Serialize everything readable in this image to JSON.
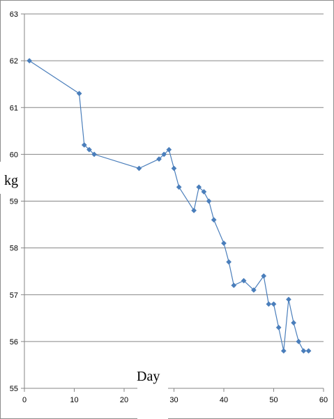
{
  "chart_data": {
    "type": "line",
    "xlabel": "Day",
    "ylabel": "kg",
    "xlim": [
      0,
      60
    ],
    "ylim": [
      55,
      63
    ],
    "x_ticks": [
      0,
      10,
      20,
      30,
      40,
      50,
      60
    ],
    "y_ticks": [
      55,
      56,
      57,
      58,
      59,
      60,
      61,
      62,
      63
    ],
    "grid": "horizontal",
    "legend": "none",
    "series": [
      {
        "color": "#4a7ebb",
        "points": [
          [
            1,
            62.0
          ],
          [
            11,
            61.3
          ],
          [
            12,
            60.2
          ],
          [
            13,
            60.1
          ],
          [
            14,
            60.0
          ],
          [
            23,
            59.7
          ],
          [
            27,
            59.9
          ],
          [
            28,
            60.0
          ],
          [
            29,
            60.1
          ],
          [
            30,
            59.7
          ],
          [
            31,
            59.3
          ],
          [
            34,
            58.8
          ],
          [
            35,
            59.3
          ],
          [
            36,
            59.2
          ],
          [
            37,
            59.0
          ],
          [
            38,
            58.6
          ],
          [
            40,
            58.1
          ],
          [
            41,
            57.7
          ],
          [
            42,
            57.2
          ],
          [
            44,
            57.3
          ],
          [
            46,
            57.1
          ],
          [
            48,
            57.4
          ],
          [
            49,
            56.8
          ],
          [
            50,
            56.8
          ],
          [
            51,
            56.3
          ],
          [
            52,
            55.8
          ],
          [
            53,
            56.9
          ],
          [
            54,
            56.4
          ],
          [
            55,
            56.0
          ],
          [
            56,
            55.8
          ],
          [
            57,
            55.8
          ]
        ]
      }
    ]
  }
}
